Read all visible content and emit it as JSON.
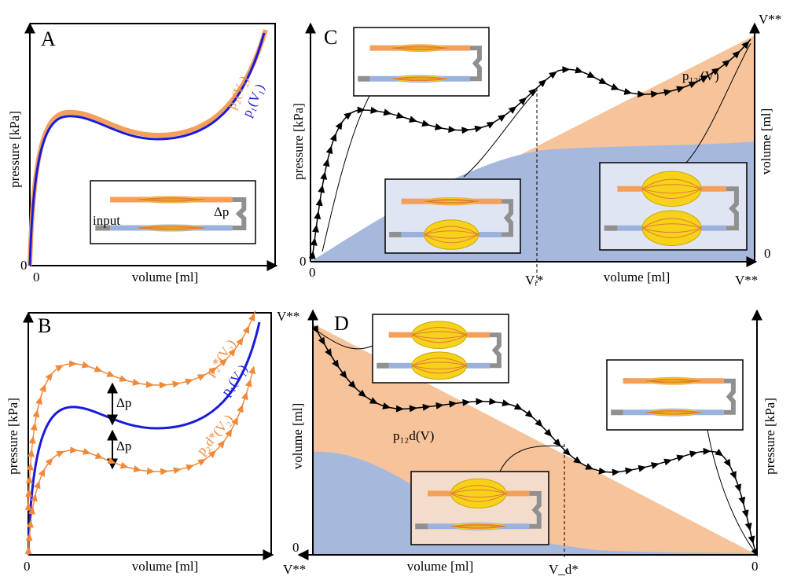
{
  "panels": [
    {
      "label": "A",
      "y_axis_label": "pressure [kPa]",
      "x_axis_label": "volume [ml]",
      "x_origin": "0",
      "y_origin": "0",
      "curve_labels": [
        "p₂(V₂)",
        "p₁(V₁)"
      ],
      "delta_label": "Δp",
      "input_label": "input"
    },
    {
      "label": "C",
      "y_axis_label": "pressure [kPa]",
      "x_axis_label": "volume [ml]",
      "right_axis_label": "volume [ml]",
      "x_origin": "0",
      "y_origin": "0",
      "right_origin": "0",
      "top_right_label": "V**",
      "bottom_right_label": "V**",
      "marker_label": "Vᵢ*",
      "curve_label": "p₁₂ᵢ(V)"
    },
    {
      "label": "B",
      "y_axis_label": "pressure [kPa]",
      "x_axis_label": "volume [ml]",
      "x_origin": "0",
      "curve_labels": [
        "p₂*(V₂)",
        "p₁(V₁)",
        "p₂d*(V₂)"
      ],
      "delta_labels": [
        "Δp",
        "Δp"
      ]
    },
    {
      "label": "D",
      "left_axis_label": "volume [ml]",
      "right_axis_label": "pressure [kPa]",
      "x_axis_label": "volume [ml]",
      "left_origin": "0",
      "right_origin": "0",
      "top_left_label": "V**",
      "bottom_left_label": "V**",
      "marker_label": "V_d*",
      "curve_label": "p₁₂d(V)"
    }
  ]
}
